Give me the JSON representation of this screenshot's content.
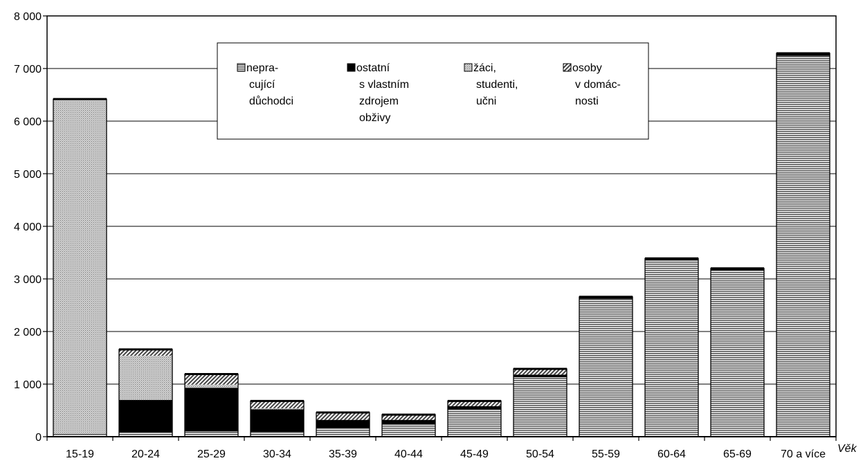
{
  "chart_data": {
    "type": "bar",
    "stacked": true,
    "categories": [
      "15-19",
      "20-24",
      "25-29",
      "30-34",
      "35-39",
      "40-44",
      "45-49",
      "50-54",
      "55-59",
      "60-64",
      "65-69",
      "70 a více"
    ],
    "xlabel": "Věk",
    "ylabel": "",
    "ylim": [
      0,
      8000
    ],
    "yticks": [
      0,
      1000,
      2000,
      3000,
      4000,
      5000,
      6000,
      7000,
      8000
    ],
    "ytick_labels": [
      "0",
      "1 000",
      "2 000",
      "3 000",
      "4 000",
      "5 000",
      "6 000",
      "7 000",
      "8 000"
    ],
    "grid": true,
    "legend_position": "top-center",
    "series": [
      {
        "name": "nepra-\ncující\ndůchodci",
        "legend_lines": [
          "nepra-",
          "cující",
          "důchodci"
        ],
        "pattern": "hlines",
        "values": [
          40,
          80,
          100,
          90,
          160,
          230,
          520,
          1130,
          2620,
          3350,
          3160,
          7240
        ]
      },
      {
        "name": "ostatní\ns vlastním\nzdrojem\nobživy",
        "legend_lines": [
          "ostatní",
          "s vlastním",
          "zdrojem",
          "obživy"
        ],
        "pattern": "black",
        "values": [
          10,
          620,
          830,
          430,
          160,
          90,
          60,
          50,
          30,
          30,
          30,
          40
        ]
      },
      {
        "name": "žáci,\nstudenti,\nučni",
        "legend_lines": [
          "žáci,",
          "studenti,",
          "učni"
        ],
        "pattern": "dots",
        "values": [
          6360,
          840,
          60,
          20,
          0,
          0,
          0,
          0,
          0,
          0,
          0,
          0
        ]
      },
      {
        "name": "osoby\nv domác-\nnosti",
        "legend_lines": [
          "osoby",
          "v domác-",
          "nosti"
        ],
        "pattern": "diag",
        "values": [
          10,
          120,
          200,
          140,
          140,
          100,
          100,
          110,
          10,
          10,
          10,
          10
        ]
      }
    ]
  }
}
